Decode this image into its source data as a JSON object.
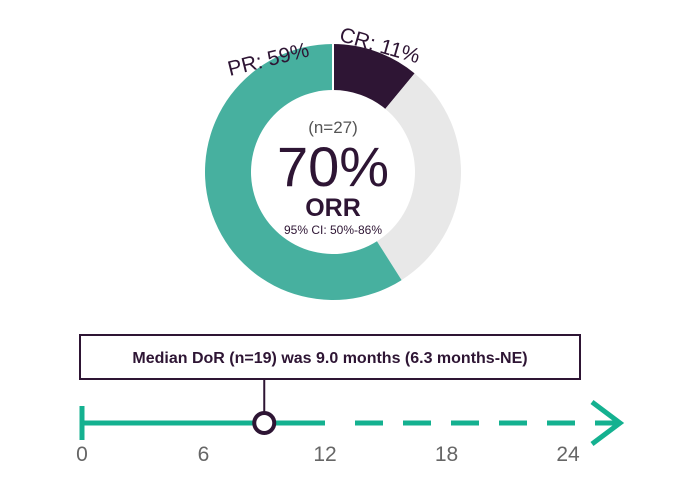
{
  "chart_data": [
    {
      "type": "pie",
      "n_label": "(n=27)",
      "center_value": "70%",
      "center_label": "ORR",
      "ci_label": "95% CI: 50%-86%",
      "slices": [
        {
          "label": "CR: 11%",
          "value": 11,
          "color": "#2e1534"
        },
        {
          "label": "",
          "value": 30,
          "color": "#e8e8e8"
        },
        {
          "label": "PR: 59%",
          "value": 59,
          "color": "#47b09f"
        }
      ]
    },
    {
      "type": "line",
      "annotation": "Median DoR (n=19) was 9.0 months (6.3 months-NE)",
      "marker_value": 9.0,
      "solid_until": 12,
      "ticks": [
        0,
        6,
        12,
        18,
        24
      ],
      "xlim": [
        0,
        24
      ],
      "axis_color": "#14b190",
      "marker_color": "#2e1534"
    }
  ]
}
